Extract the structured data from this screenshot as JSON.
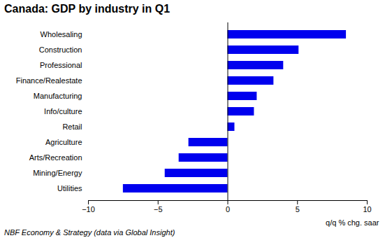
{
  "chart_data": {
    "type": "bar",
    "orientation": "horizontal",
    "title": "Canada: GDP by industry in Q1",
    "categories": [
      "Wholesaling",
      "Construction",
      "Professional",
      "Finance/Realestate",
      "Manufacturing",
      "Info/culture",
      "Retail",
      "Agriculture",
      "Arts/Recreation",
      "Mining/Energy",
      "Utilities"
    ],
    "values": [
      8.5,
      5.1,
      4.0,
      3.3,
      2.1,
      1.9,
      0.5,
      -2.8,
      -3.5,
      -4.5,
      -7.5
    ],
    "color": "#0000ee",
    "xlim": [
      -10,
      10
    ],
    "xticks": [
      -10,
      -5,
      0,
      5,
      10
    ],
    "annotation": "q/q % chg. saar",
    "caption": "NBF Economy & Strategy (data via Global Insight)",
    "grid": false
  }
}
